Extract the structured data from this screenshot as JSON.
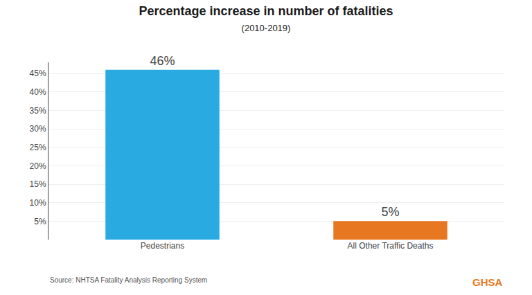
{
  "chart_data": {
    "type": "bar",
    "title": "Percentage increase in number of fatalities",
    "subtitle": "(2010-2019)",
    "categories": [
      "Pedestrians",
      "All Other Traffic Deaths"
    ],
    "values": [
      46,
      5
    ],
    "value_labels": [
      "46%",
      "5%"
    ],
    "data_labels": true,
    "colors": [
      "#29ABE2",
      "#E87722"
    ],
    "ylim": [
      0,
      48
    ],
    "yticks": [
      {
        "value": 5,
        "label": "5%"
      },
      {
        "value": 10,
        "label": "10%"
      },
      {
        "value": 15,
        "label": "15%"
      },
      {
        "value": 20,
        "label": "20%"
      },
      {
        "value": 25,
        "label": "25%"
      },
      {
        "value": 30,
        "label": "30%"
      },
      {
        "value": 35,
        "label": "35%"
      },
      {
        "value": 40,
        "label": "40%"
      },
      {
        "value": 45,
        "label": "45%"
      }
    ],
    "grid": true,
    "annotations": [
      "Source: NHTSA Fatality Analysis Reporting System",
      "GHSA"
    ]
  }
}
